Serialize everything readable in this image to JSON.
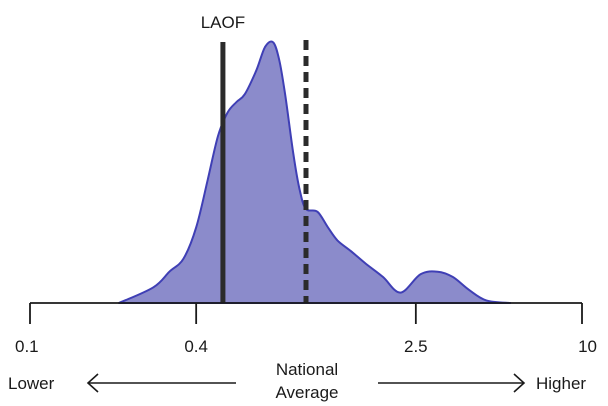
{
  "chart_data": {
    "type": "area",
    "x_scale": "log",
    "xlim": [
      0.1,
      10
    ],
    "ylim": [
      0,
      1
    ],
    "x_ticks": [
      {
        "value": 0.1,
        "label": "0.1"
      },
      {
        "value": 0.4,
        "label": "0.4"
      },
      {
        "value": 2.5,
        "label": "2.5"
      },
      {
        "value": 10,
        "label": "10"
      }
    ],
    "density": {
      "x": [
        0.21,
        0.28,
        0.32,
        0.36,
        0.4,
        0.44,
        0.48,
        0.52,
        0.56,
        0.6,
        0.66,
        0.71,
        0.76,
        0.8,
        0.84,
        0.9,
        0.95,
        1.0,
        1.1,
        1.2,
        1.3,
        1.45,
        1.65,
        1.9,
        2.2,
        2.6,
        3.0,
        3.4,
        3.9,
        4.5,
        5.5
      ],
      "y": [
        0.0,
        0.06,
        0.12,
        0.17,
        0.29,
        0.47,
        0.64,
        0.73,
        0.77,
        0.8,
        0.89,
        0.98,
        0.999,
        0.93,
        0.8,
        0.57,
        0.43,
        0.36,
        0.35,
        0.29,
        0.24,
        0.2,
        0.15,
        0.1,
        0.04,
        0.11,
        0.12,
        0.1,
        0.05,
        0.01,
        0.0
      ],
      "fill_color": "#8b8bcb",
      "line_color": "#3f3fb5"
    },
    "markers": [
      {
        "label": "LAOF",
        "value": 0.5,
        "style": "solid"
      },
      {
        "label": "",
        "value": 1.0,
        "style": "dashed"
      }
    ],
    "direction": {
      "left": "Lower",
      "center_line1": "National",
      "center_line2": "Average",
      "right": "Higher"
    }
  }
}
